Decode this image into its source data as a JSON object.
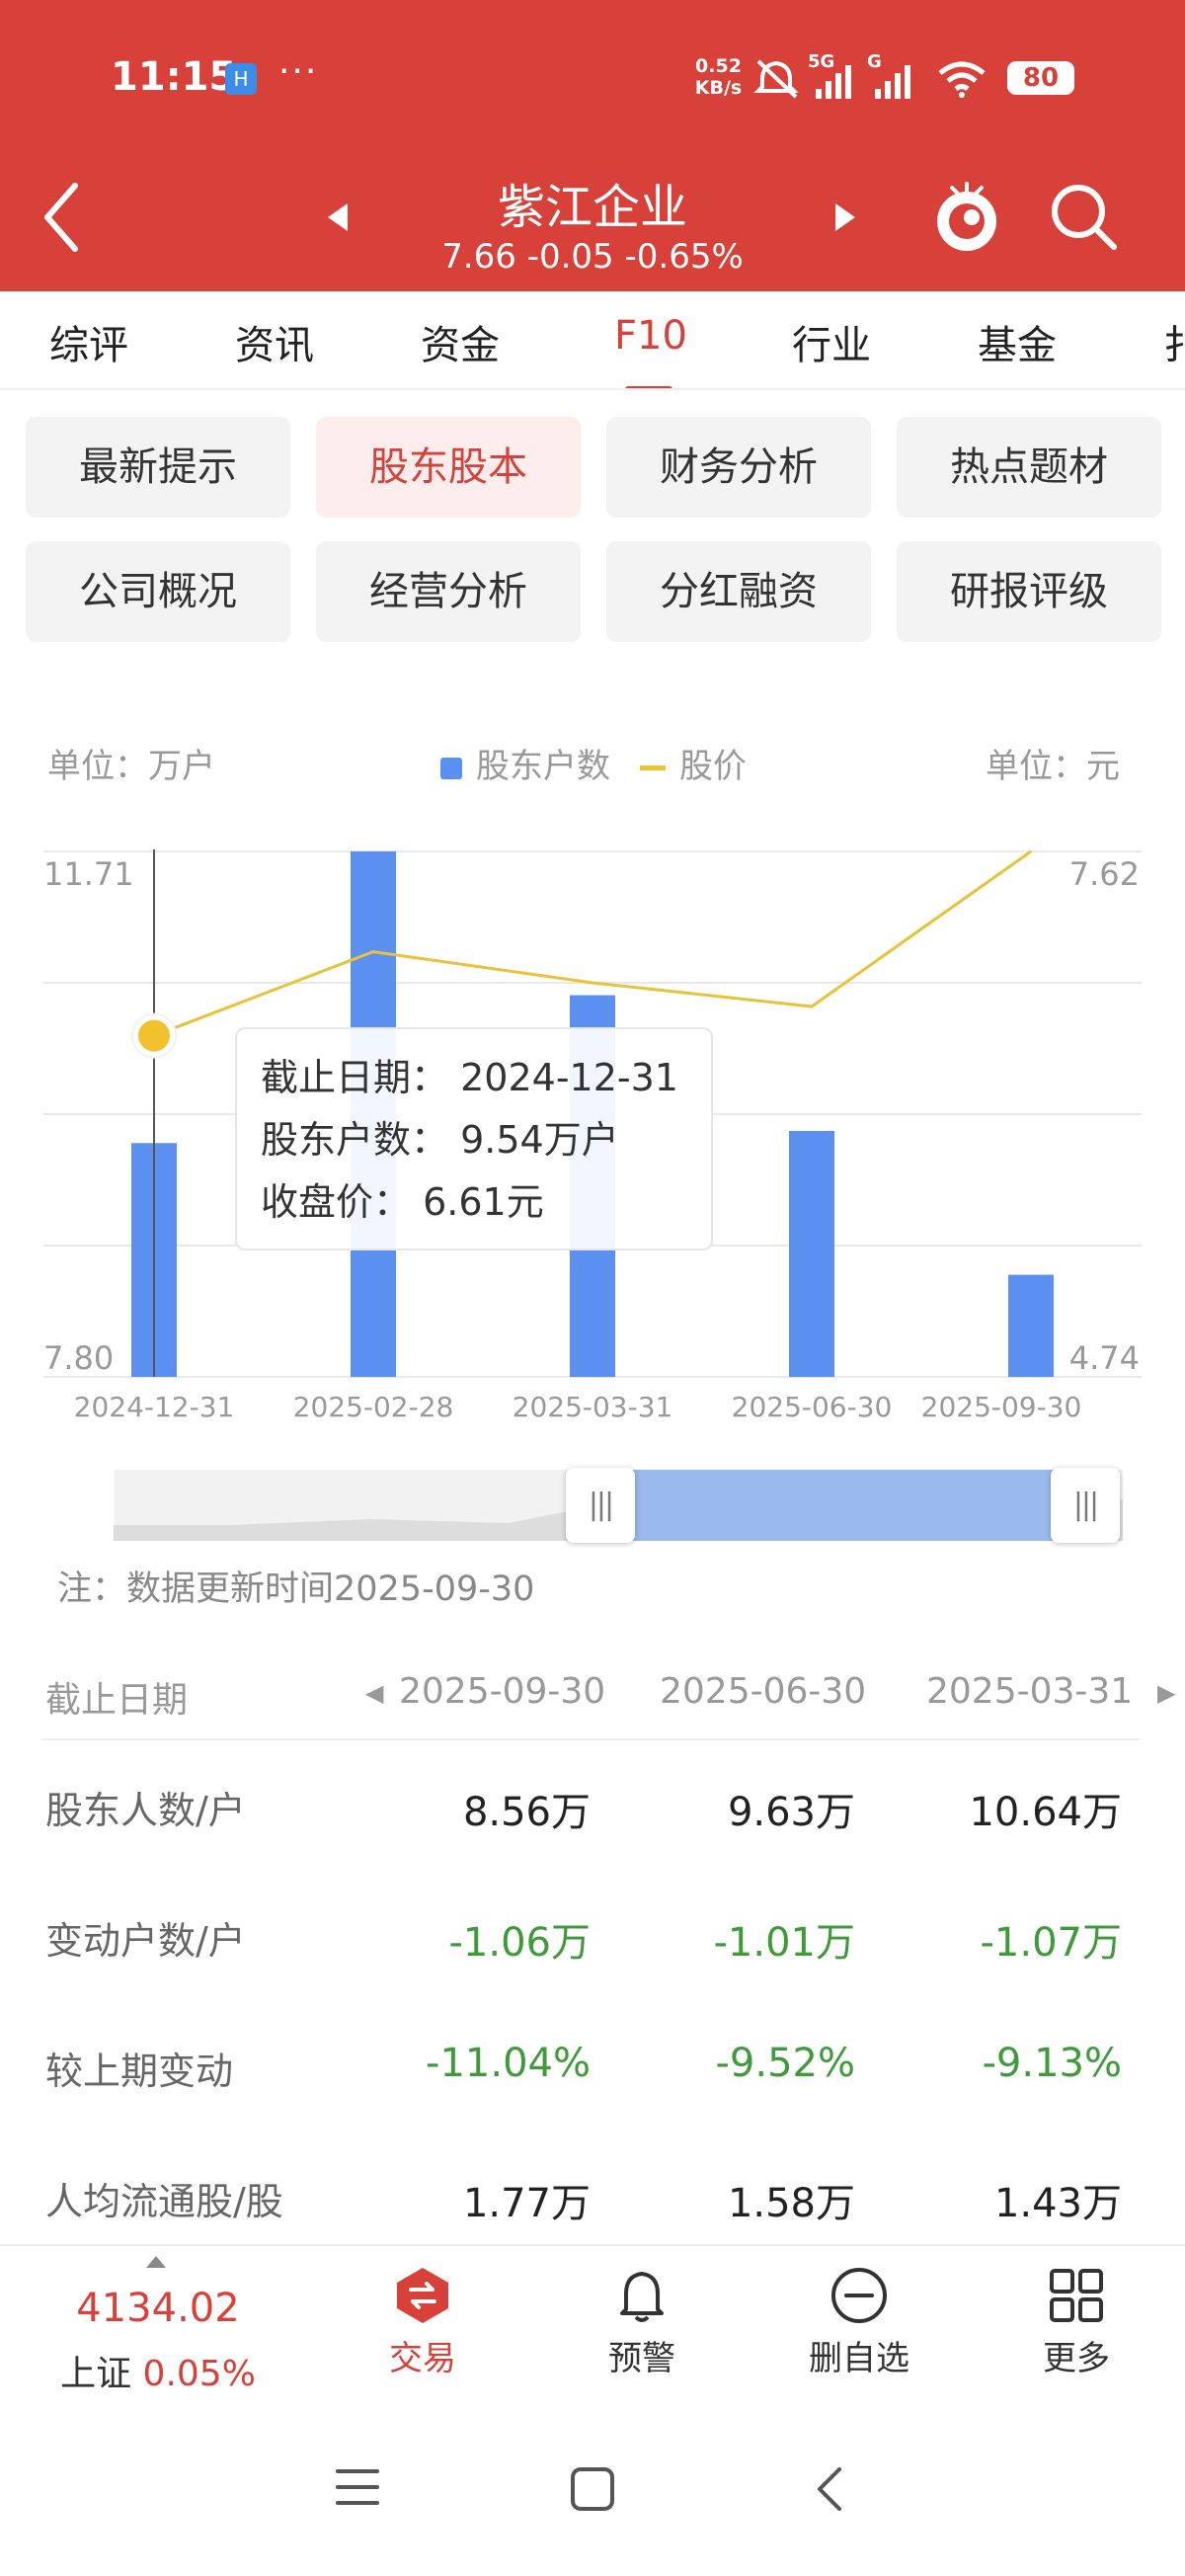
{
  "status_bar": {
    "time": "11:15",
    "app_icon_glyph": "H",
    "more": "···",
    "net_speed_value": "0.52",
    "net_speed_unit": "KB/s",
    "signal_5g": "5G",
    "signal_g": "G",
    "battery": "80"
  },
  "header": {
    "stock_name": "紫江企业",
    "quote": "7.66 -0.05 -0.65%"
  },
  "tabs": [
    "综评",
    "资讯",
    "资金",
    "F10",
    "行业",
    "基金",
    "扌"
  ],
  "active_tab": "F10",
  "sub_menu": [
    [
      "最新提示",
      "股东股本",
      "财务分析",
      "热点题材"
    ],
    [
      "公司概况",
      "经营分析",
      "分红融资",
      "研报评级"
    ]
  ],
  "active_sub": "股东股本",
  "chart_data": {
    "type": "bar+line",
    "unit_left": "单位：万户",
    "unit_right": "单位：元",
    "legend": [
      "股东户数",
      "股价"
    ],
    "categories": [
      "2024-12-31",
      "2025-02-28",
      "2025-03-31",
      "2025-06-30",
      "2025-09-30"
    ],
    "series": [
      {
        "name": "股东户数",
        "type": "bar",
        "values": [
          9.54,
          11.71,
          10.64,
          9.63,
          8.56
        ],
        "color": "#5b8ff0"
      },
      {
        "name": "股价",
        "type": "line",
        "values": [
          6.61,
          7.07,
          6.9,
          6.77,
          7.62
        ],
        "color": "#e8c338"
      }
    ],
    "y_left_range": [
      7.8,
      11.71
    ],
    "y_right_range": [
      4.74,
      7.62
    ],
    "y_left_labels": [
      "11.71",
      "7.80"
    ],
    "y_right_labels": [
      "7.62",
      "4.74"
    ],
    "highlighted_category": "2024-12-31",
    "grid": true
  },
  "tooltip": {
    "date_label": "截止日期：",
    "date_value": "2024-12-31",
    "holders_label": "股东户数：",
    "holders_value": "9.54万户",
    "close_label": "收盘价：",
    "close_value": "6.61元"
  },
  "slider": {
    "selected_range": [
      0.47,
      1.0
    ]
  },
  "note": "注：数据更新时间2025-09-30",
  "table": {
    "header_label": "截止日期",
    "columns": [
      "2025-09-30",
      "2025-06-30",
      "2025-03-31"
    ],
    "rows": [
      {
        "label": "股东人数/户",
        "values": [
          "8.56万",
          "9.63万",
          "10.64万"
        ],
        "green": false
      },
      {
        "label": "变动户数/户",
        "values": [
          "-1.06万",
          "-1.01万",
          "-1.07万"
        ],
        "green": true
      },
      {
        "label": "较上期变动",
        "values": [
          "-11.04%",
          "-9.52%",
          "-9.13%"
        ],
        "green": true
      },
      {
        "label": "人均流通股/股",
        "values": [
          "1.77万",
          "1.58万",
          "1.43万"
        ],
        "green": false
      }
    ]
  },
  "bottom_nav": {
    "index_value": "4134.02",
    "index_name": "上证",
    "index_change": "0.05%",
    "items": [
      {
        "label": "交易",
        "icon": "trade-icon"
      },
      {
        "label": "预警",
        "icon": "bell-icon"
      },
      {
        "label": "删自选",
        "icon": "minus-circle-icon"
      },
      {
        "label": "更多",
        "icon": "grid-icon"
      }
    ]
  },
  "colors": {
    "brand_red": "#d8403a",
    "bar_blue": "#5b8ff0",
    "line_yellow": "#e8c338",
    "negative_green": "#3f9a3a"
  }
}
